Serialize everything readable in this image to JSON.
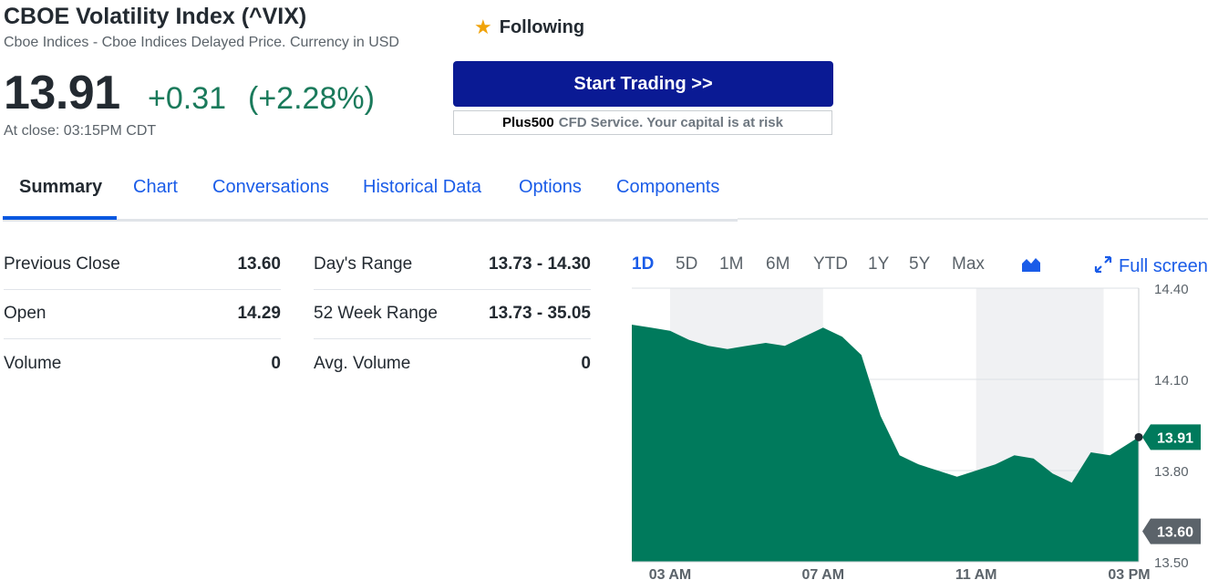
{
  "quote": {
    "title": "CBOE Volatility Index (^VIX)",
    "subtitle": "Cboe Indices - Cboe Indices Delayed Price. Currency in USD",
    "price": "13.91",
    "change": "+0.31",
    "change_pct": "(+2.28%)",
    "close_time": "At close: 03:15PM CDT"
  },
  "follow": {
    "label": "Following",
    "icon": "star-icon"
  },
  "trade": {
    "button_label": "Start Trading >>",
    "disclaimer_brand": "Plus500",
    "disclaimer_text": "CFD Service. Your capital is at risk"
  },
  "tabs": [
    {
      "label": "Summary",
      "active": true
    },
    {
      "label": "Chart"
    },
    {
      "label": "Conversations"
    },
    {
      "label": "Historical Data"
    },
    {
      "label": "Options"
    },
    {
      "label": "Components"
    }
  ],
  "stats_left": [
    {
      "label": "Previous Close",
      "value": "13.60"
    },
    {
      "label": "Open",
      "value": "14.29"
    },
    {
      "label": "Volume",
      "value": "0"
    }
  ],
  "stats_right": [
    {
      "label": "Day's Range",
      "value": "13.73 - 14.30"
    },
    {
      "label": "52 Week Range",
      "value": "13.73 - 35.05"
    },
    {
      "label": "Avg. Volume",
      "value": "0"
    }
  ],
  "chart_controls": {
    "ranges": [
      "1D",
      "5D",
      "1M",
      "6M",
      "YTD",
      "1Y",
      "5Y",
      "Max"
    ],
    "active_range": "1D",
    "chart_type_icon": "area-chart-icon",
    "fullscreen_label": "Full screen",
    "fullscreen_icon": "expand-icon"
  },
  "colors": {
    "positive": "#1a7a5b",
    "area_fill": "#007a5c",
    "link": "#1a5ce8",
    "trade_button": "#0a1a94",
    "star": "#f0a30a",
    "prev_close_badge": "#5b636a"
  },
  "chart_data": {
    "type": "area",
    "x_ticks": [
      "03 AM",
      "07 AM",
      "11 AM",
      "03 PM"
    ],
    "y_ticks": [
      "14.40",
      "14.10",
      "13.80",
      "13.50"
    ],
    "ylim": [
      13.5,
      14.4
    ],
    "current_price_label": "13.91",
    "previous_close_label": "13.60",
    "current_price": 13.91,
    "previous_close": 13.6,
    "x": [
      "02:00",
      "02:30",
      "03:00",
      "03:30",
      "04:00",
      "04:30",
      "05:00",
      "05:30",
      "06:00",
      "06:30",
      "07:00",
      "07:30",
      "08:00",
      "08:30",
      "09:00",
      "09:30",
      "10:00",
      "10:30",
      "11:00",
      "11:30",
      "12:00",
      "12:30",
      "13:00",
      "13:30",
      "14:00",
      "14:30",
      "15:00",
      "15:15"
    ],
    "y": [
      14.28,
      14.27,
      14.26,
      14.23,
      14.21,
      14.2,
      14.21,
      14.22,
      14.21,
      14.24,
      14.27,
      14.24,
      14.18,
      13.98,
      13.85,
      13.82,
      13.8,
      13.78,
      13.8,
      13.82,
      13.85,
      13.84,
      13.79,
      13.76,
      13.86,
      13.85,
      13.89,
      13.91
    ],
    "shaded_bands": [
      [
        "03:00",
        "07:00"
      ],
      [
        "11:00",
        "14:20"
      ]
    ],
    "grid": true
  }
}
